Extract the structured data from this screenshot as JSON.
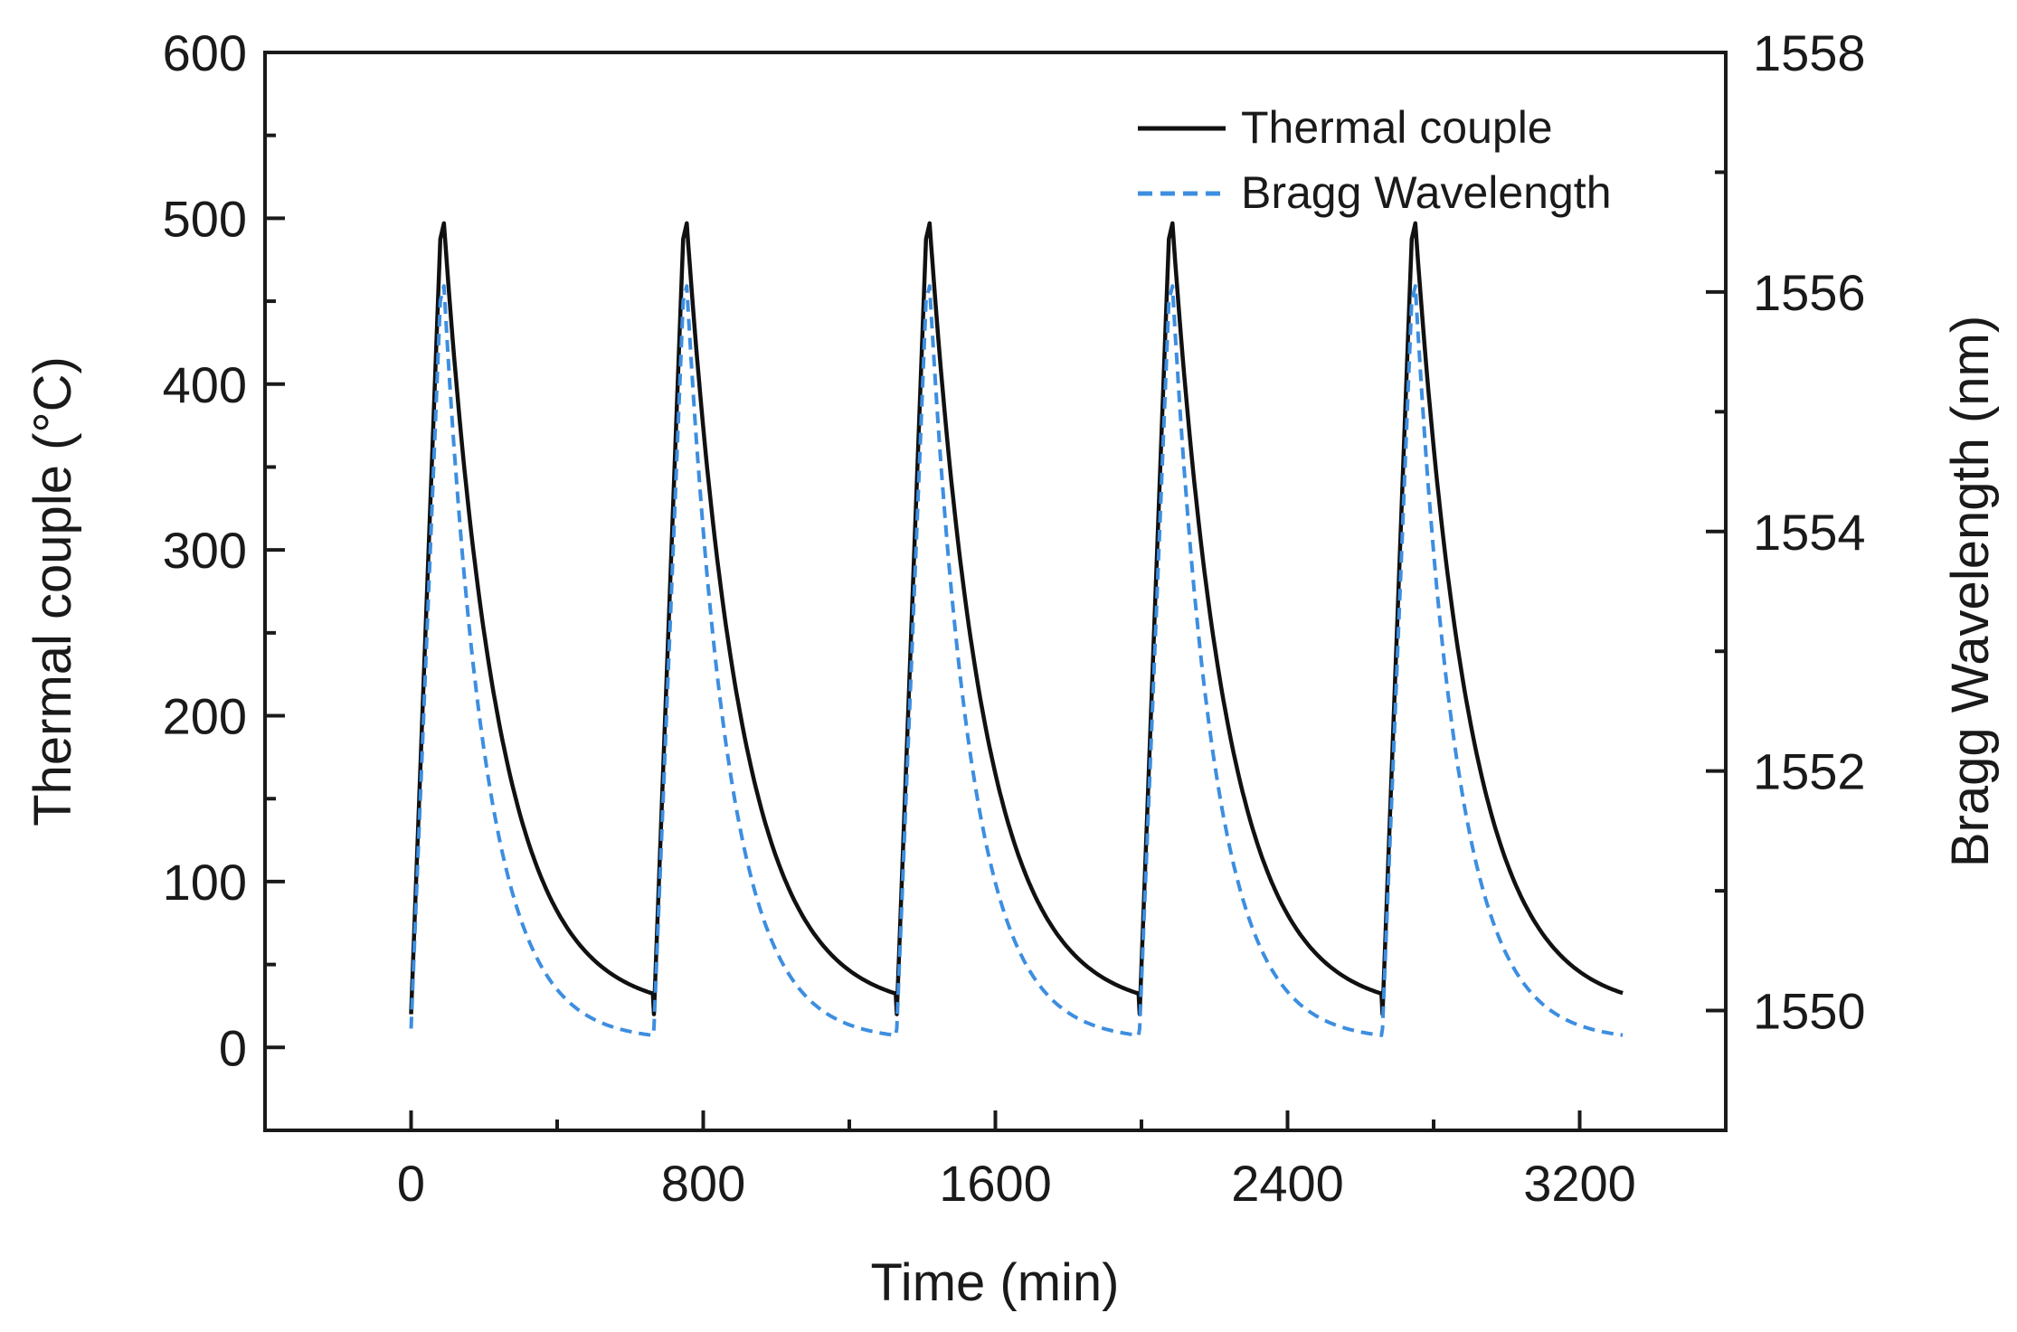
{
  "chart_data": {
    "type": "line",
    "xlabel": "Time (min)",
    "ylabel_left": "Thermal couple (°C)",
    "ylabel_right": "Bragg Wavelength (nm)",
    "xlim": [
      -400,
      3600
    ],
    "ylim_left": [
      -50,
      600
    ],
    "ylim_right": [
      1549,
      1558
    ],
    "x_ticks": [
      0,
      800,
      1600,
      2400,
      3200
    ],
    "y_left_ticks": [
      0,
      100,
      200,
      300,
      400,
      500,
      600
    ],
    "y_right_ticks": [
      1550,
      1552,
      1554,
      1556,
      1558
    ],
    "grid": false,
    "legend_position": "top-right",
    "cycle_starts": [
      0,
      665,
      1330,
      1995,
      2660
    ],
    "peak_offset": 90,
    "series": [
      {
        "name": "Thermal couple",
        "axis": "left",
        "style": "solid",
        "color": "#111111",
        "start_value": 20,
        "peak_value": 497,
        "end_value": 22,
        "end_time": 3320
      },
      {
        "name": "Bragg Wavelength",
        "axis": "right",
        "style": "dashed",
        "color": "#3d8ee0",
        "start_value": 1549.85,
        "peak_value": 1556.05,
        "end_value": 1549.75,
        "end_time": 3320
      }
    ]
  }
}
